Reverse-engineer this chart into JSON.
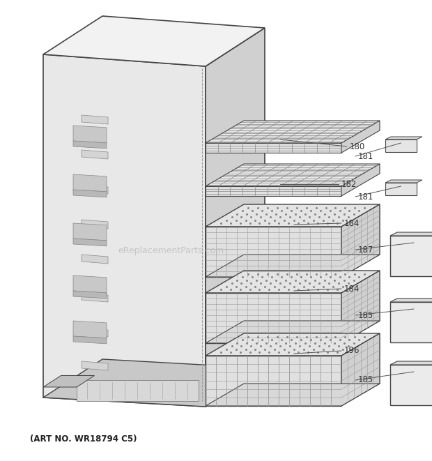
{
  "background_color": "#ffffff",
  "line_color": "#444444",
  "footer": "(ART NO. WR18794 C5)",
  "watermark": "eReplacementParts.com",
  "figsize": [
    6.2,
    6.61
  ],
  "dpi": 100
}
